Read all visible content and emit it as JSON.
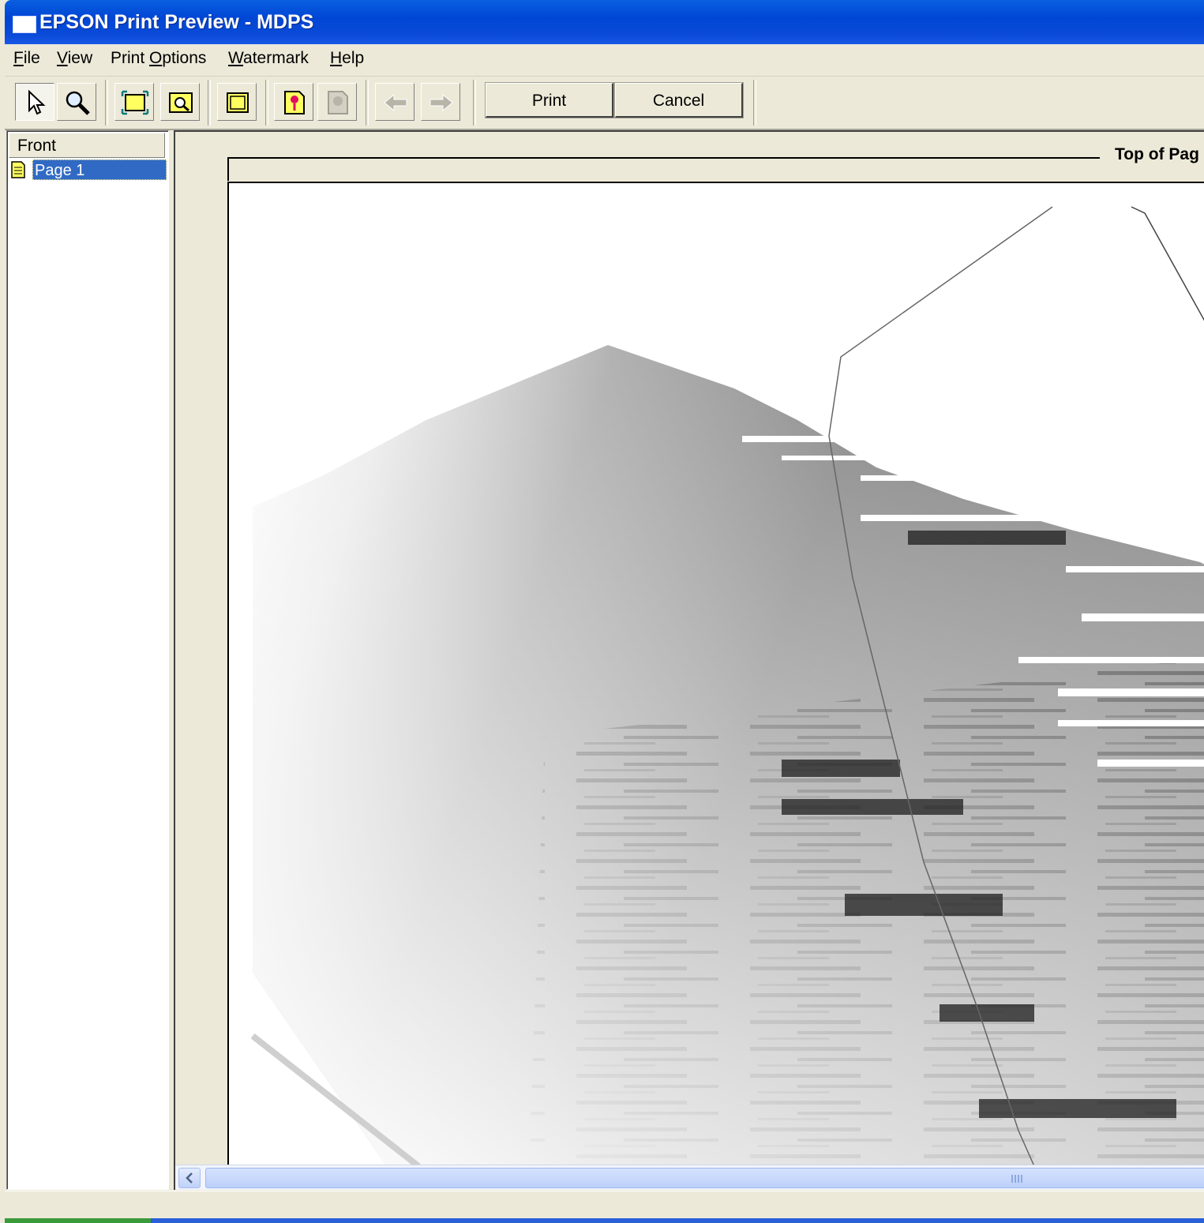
{
  "window": {
    "title": "EPSON Print Preview - MDPS"
  },
  "menu": {
    "items": [
      {
        "id": "file",
        "label": "File",
        "accel": "F"
      },
      {
        "id": "view",
        "label": "View",
        "accel": "V"
      },
      {
        "id": "print-options",
        "label": "Print Options",
        "accel": "O"
      },
      {
        "id": "watermark",
        "label": "Watermark",
        "accel": "W"
      },
      {
        "id": "help",
        "label": "Help",
        "accel": "H"
      }
    ]
  },
  "toolbar": {
    "tools": [
      "arrow-pointer-icon",
      "magnifier-icon",
      "fit-page-icon",
      "zoom-page-icon",
      "page-outline-icon",
      "watermark-add-icon",
      "watermark-edit-icon",
      "prev-page-icon",
      "next-page-icon"
    ],
    "print_label": "Print",
    "cancel_label": "Cancel"
  },
  "tree": {
    "header": "Front",
    "items": [
      {
        "label": "Page 1",
        "selected": true
      }
    ]
  },
  "preview": {
    "top_label": "Top of Pag"
  },
  "colors": {
    "title_bar": "#0046d5",
    "selection": "#316ac5",
    "face": "#ece9d8"
  }
}
